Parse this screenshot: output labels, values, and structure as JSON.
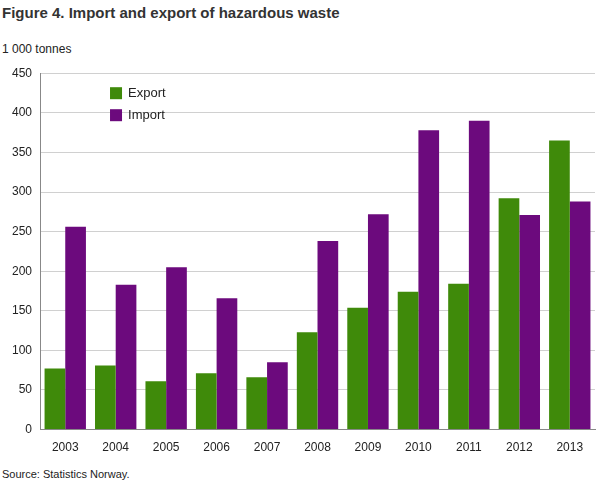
{
  "chart_data": {
    "type": "bar",
    "title": "Figure 4. Import and export of hazardous waste",
    "y_label": "1 000 tonnes",
    "source": "Source: Statistics Norway.",
    "categories": [
      "2003",
      "2004",
      "2005",
      "2006",
      "2007",
      "2008",
      "2009",
      "2010",
      "2011",
      "2012",
      "2013"
    ],
    "series": [
      {
        "name": "Export",
        "color": "#3f8a0a",
        "values": [
          77,
          81,
          61,
          71,
          66,
          123,
          154,
          174,
          184,
          292,
          365
        ]
      },
      {
        "name": "Import",
        "color": "#6c0a7d",
        "values": [
          256,
          183,
          205,
          166,
          85,
          238,
          272,
          378,
          390,
          271,
          288
        ]
      }
    ],
    "ylim": [
      0,
      450
    ],
    "yticks": [
      0,
      50,
      100,
      150,
      200,
      250,
      300,
      350,
      400,
      450
    ],
    "grid": true,
    "legend": "top-left"
  }
}
